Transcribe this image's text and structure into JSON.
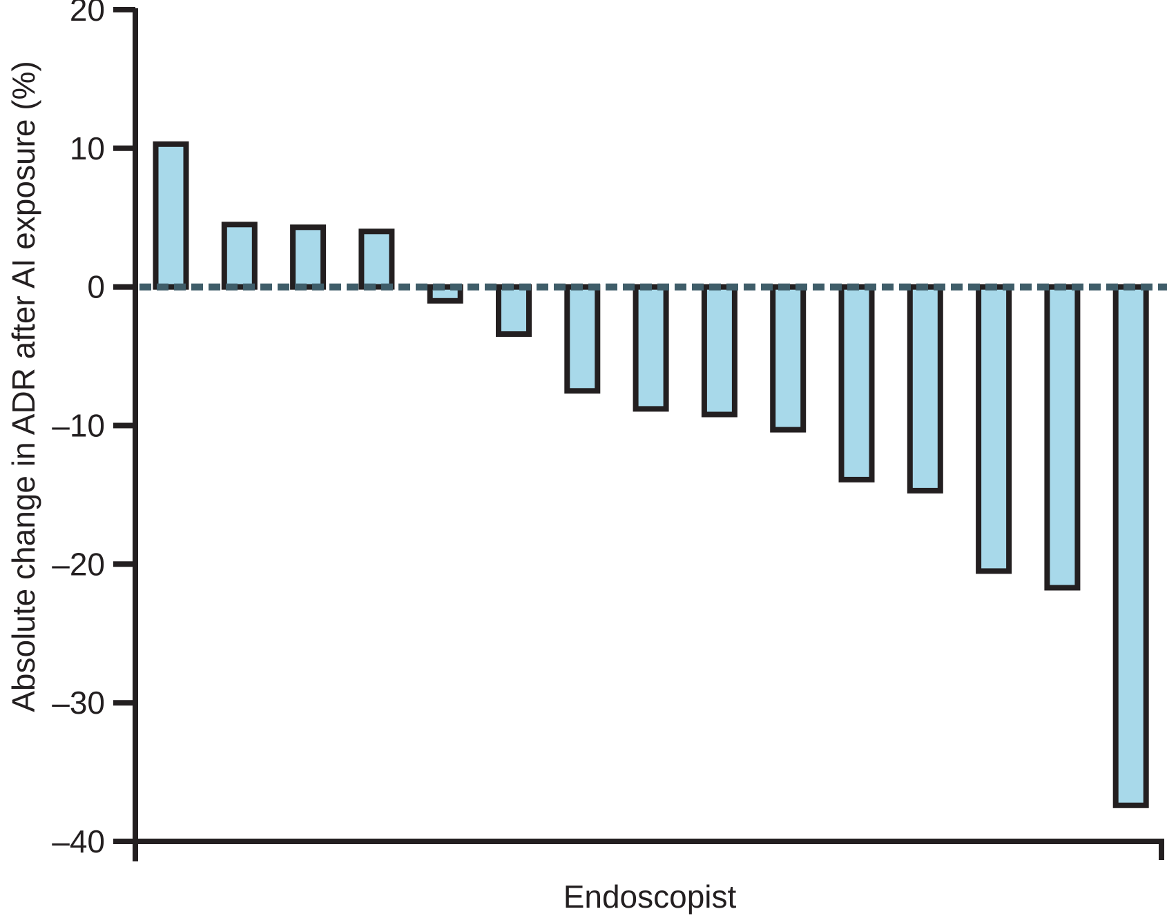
{
  "chart_data": {
    "type": "bar",
    "title": "",
    "xlabel": "Endoscopist",
    "ylabel": "Absolute change in ADR after AI exposure (%)",
    "ylim": [
      -40,
      20
    ],
    "yticks": [
      20,
      10,
      0,
      -10,
      -20,
      -30,
      -40
    ],
    "ytick_labels": [
      "20",
      "10",
      "0",
      "–10",
      "–20",
      "–30",
      "–40"
    ],
    "n_bars": 15,
    "values": [
      10.3,
      4.5,
      4.3,
      4.0,
      -1.0,
      -3.4,
      -7.5,
      -8.8,
      -9.2,
      -10.3,
      -13.9,
      -14.7,
      -20.5,
      -21.7,
      -37.4
    ],
    "zero_line_style": "dashed",
    "grid": false,
    "legend": false,
    "colors": {
      "bar_fill": "#a8d9ea",
      "bar_stroke": "#231f20",
      "axis": "#231f20",
      "tick_text": "#231f20",
      "zero_line": "#3f5d69",
      "background": "#ffffff"
    }
  },
  "labels": {
    "xlabel": "Endoscopist",
    "ylabel": "Absolute change in ADR after AI exposure (%)"
  }
}
